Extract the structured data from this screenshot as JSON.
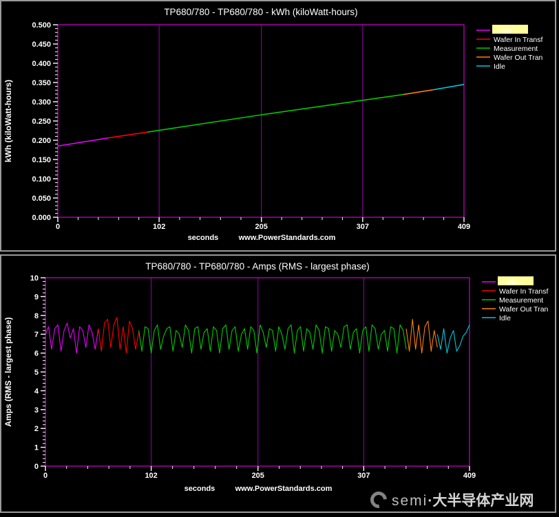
{
  "watermark": {
    "brand": "semi",
    "site": "·大半导体产业网"
  },
  "chart_data": [
    {
      "type": "line",
      "title": "TP680/780 - TP680/780 - kWh (kiloWatt-hours)",
      "ylabel": "kWh (kiloWatt-hours)",
      "xlabel": "seconds",
      "xlabel2": "www.PowerStandards.com",
      "xlim": [
        0,
        409
      ],
      "ylim": [
        0,
        0.5
      ],
      "xticks": [
        0,
        102,
        205,
        307,
        409
      ],
      "ytick_step": 0.05,
      "yminor_step": 0.01,
      "ytick_decimals": 3,
      "grid": "vertical",
      "grid_color": "#9b00b4",
      "frame_color": "#c400c4",
      "line_width": 1.6,
      "legend_position": "right",
      "legend": [
        {
          "label": "-- idle --",
          "color": "#e800ff",
          "highlight": true
        },
        {
          "label": "Wafer In Transf",
          "color": "#ff0000",
          "highlight": false
        },
        {
          "label": "Measurement",
          "color": "#00cc00",
          "highlight": false
        },
        {
          "label": "Wafer Out Tran",
          "color": "#ff8000",
          "highlight": false
        },
        {
          "label": "Idle",
          "color": "#00c8e0",
          "highlight": false
        }
      ],
      "series": [
        {
          "name": "-- idle --",
          "color": "#e800ff",
          "points": [
            [
              0,
              0.185
            ],
            [
              51,
              0.206
            ]
          ]
        },
        {
          "name": "Wafer In Transf",
          "color": "#ff0000",
          "points": [
            [
              51,
              0.206
            ],
            [
              90,
              0.221
            ]
          ]
        },
        {
          "name": "Measurement",
          "color": "#00cc00",
          "points": [
            [
              90,
              0.221
            ],
            [
              205,
              0.266
            ],
            [
              348,
              0.319
            ]
          ]
        },
        {
          "name": "Wafer Out Tran",
          "color": "#ff8000",
          "points": [
            [
              348,
              0.319
            ],
            [
              378,
              0.331
            ]
          ]
        },
        {
          "name": "Idle",
          "color": "#00c8e0",
          "points": [
            [
              378,
              0.331
            ],
            [
              409,
              0.345
            ]
          ]
        }
      ]
    },
    {
      "type": "line",
      "title": "TP680/780 - TP680/780 - Amps (RMS - largest phase)",
      "ylabel": "Amps (RMS - largest phase)",
      "xlabel": "seconds",
      "xlabel2": "www.PowerStandards.com",
      "xlim": [
        0,
        409
      ],
      "ylim": [
        0,
        10
      ],
      "xticks": [
        0,
        102,
        205,
        307,
        409
      ],
      "ytick_step": 1,
      "yminor_step": 0.2,
      "ytick_decimals": 0,
      "grid": "vertical",
      "grid_color": "#9b00b4",
      "frame_color": "#c400c4",
      "line_width": 1.1,
      "legend_position": "right",
      "legend": [
        {
          "label": "-- idle --",
          "color": "#e800ff",
          "highlight": true
        },
        {
          "label": "Wafer In Transf",
          "color": "#ff0000",
          "highlight": false
        },
        {
          "label": "Measurement",
          "color": "#00cc00",
          "highlight": false
        },
        {
          "label": "Wafer Out Tran",
          "color": "#ff8000",
          "highlight": false
        },
        {
          "label": "Idle",
          "color": "#00c8e0",
          "highlight": false
        }
      ],
      "series": [
        {
          "name": "-- idle --",
          "color": "#e800ff",
          "x0": 0,
          "dx": 3,
          "y": [
            7.0,
            7.4,
            6.2,
            7.3,
            7.5,
            6.1,
            7.2,
            7.6,
            6.8,
            7.3,
            6.0,
            7.4,
            7.2,
            6.3,
            7.5,
            7.1,
            6.2,
            7.3
          ]
        },
        {
          "name": "Wafer In Transf",
          "color": "#ff0000",
          "x0": 51,
          "dx": 3,
          "y": [
            7.3,
            6.1,
            7.6,
            7.8,
            6.3,
            7.5,
            7.9,
            6.2,
            7.4,
            6.0,
            7.7,
            7.3,
            6.2,
            7.1
          ]
        },
        {
          "name": "Measurement",
          "color": "#00cc00",
          "x0": 90,
          "dx": 3,
          "y": [
            7.2,
            6.1,
            7.4,
            7.3,
            6.0,
            7.2,
            7.5,
            6.2,
            6.9,
            7.3,
            7.4,
            6.1,
            7.2,
            7.0,
            6.3,
            7.5,
            7.2,
            6.0,
            7.3,
            7.4,
            6.2,
            7.1,
            7.3,
            6.1,
            7.4,
            7.2,
            6.0,
            7.3,
            7.5,
            6.2,
            7.2,
            7.4,
            6.1,
            7.0,
            7.3,
            6.2,
            7.4,
            7.2,
            6.0,
            7.5,
            7.1,
            6.3,
            7.3,
            7.2,
            6.1,
            7.4,
            7.0,
            6.2,
            7.3,
            7.5,
            6.0,
            7.2,
            7.4,
            6.1,
            7.3,
            7.1,
            6.2,
            7.5,
            7.2,
            6.0,
            7.4,
            7.3,
            6.1,
            7.2,
            7.0,
            6.3,
            7.4,
            7.5,
            6.2,
            7.1,
            7.3,
            6.0,
            7.2,
            7.4,
            6.1,
            7.5,
            7.3,
            6.2,
            7.0,
            7.2,
            6.1,
            7.4,
            7.3,
            6.0,
            7.5,
            7.2,
            6.2
          ]
        },
        {
          "name": "Wafer Out Tran",
          "color": "#ff8000",
          "x0": 348,
          "dx": 3,
          "y": [
            7.3,
            6.1,
            7.8,
            6.2,
            7.5,
            6.0,
            7.4,
            7.7,
            6.1,
            7.2,
            6.3
          ]
        },
        {
          "name": "Idle",
          "color": "#00c8e0",
          "x0": 378,
          "dx": 3.1,
          "y": [
            7.0,
            6.2,
            7.3,
            6.0,
            6.8,
            7.2,
            6.1,
            6.4,
            6.9,
            7.1,
            7.5
          ]
        }
      ]
    }
  ]
}
